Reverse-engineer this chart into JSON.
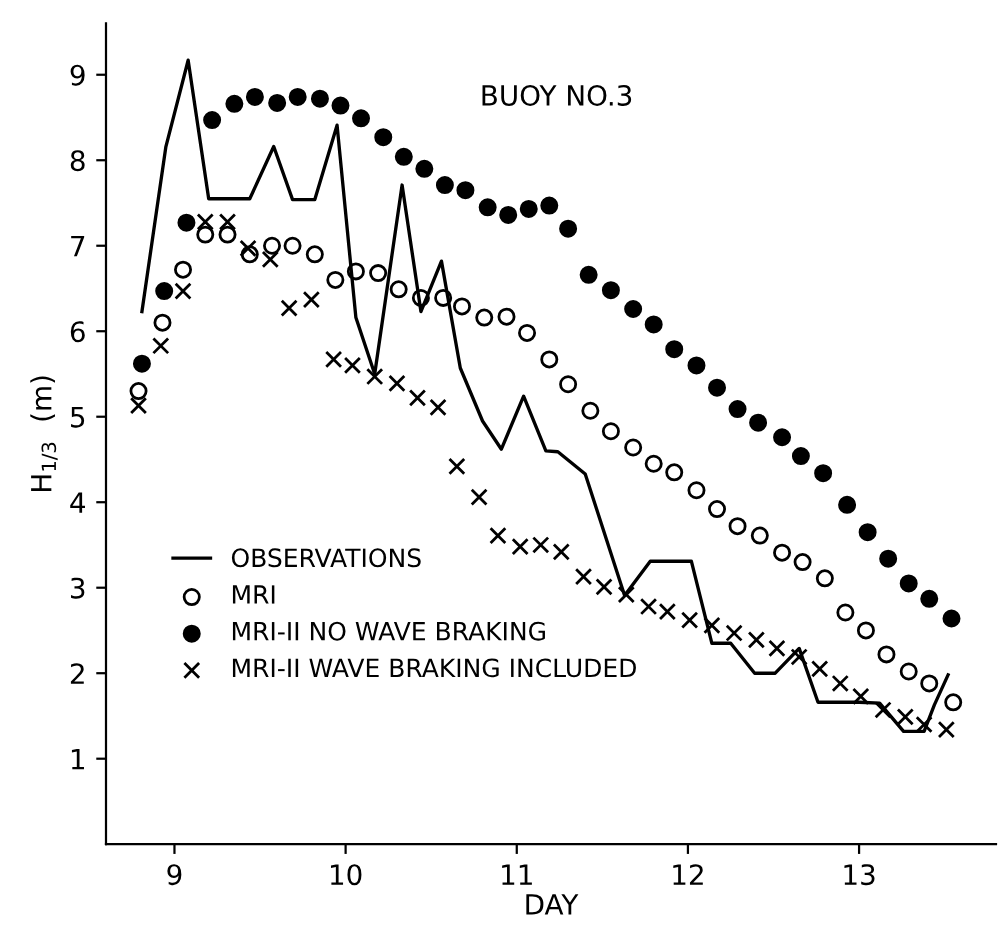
{
  "chart_data": {
    "type": "line",
    "xlabel": "DAY",
    "ylabel": "H$_{1/3}$  (m)",
    "annotations": [
      "BUOY NO.3"
    ],
    "xlim": [
      8.6,
      13.8
    ],
    "ylim": [
      0,
      9.6
    ],
    "xticks": [
      9,
      10,
      11,
      12,
      13
    ],
    "yticks": [
      1,
      2,
      3,
      4,
      5,
      6,
      7,
      8,
      9
    ],
    "grid": false,
    "legend": "bottom left",
    "series": [
      {
        "name": "OBSERVATIONS",
        "color": "#000000",
        "marker": "none",
        "line_style": "solid",
        "x": [
          8.81,
          8.95,
          9.08,
          9.2,
          9.44,
          9.58,
          9.69,
          9.82,
          9.95,
          10.06,
          10.17,
          10.33,
          10.44,
          10.56,
          10.67,
          10.8,
          10.91,
          11.04,
          11.17,
          11.24,
          11.4,
          11.63,
          11.78,
          12.02,
          12.14,
          12.25,
          12.39,
          12.51,
          12.65,
          12.76,
          13.0,
          13.12,
          13.26,
          13.38,
          13.44,
          13.52
        ],
        "values": [
          6.23,
          8.16,
          9.17,
          7.55,
          7.55,
          8.16,
          7.54,
          7.54,
          8.41,
          6.16,
          5.5,
          7.71,
          6.23,
          6.82,
          5.57,
          4.95,
          4.62,
          5.24,
          4.6,
          4.59,
          4.33,
          2.91,
          3.31,
          3.31,
          2.35,
          2.35,
          2.0,
          2.0,
          2.29,
          1.66,
          1.66,
          1.65,
          1.32,
          1.32,
          1.63,
          1.98
        ]
      },
      {
        "name": "MRI",
        "type": "scatter",
        "color": "#ffffff",
        "marker": "circle",
        "x": [
          8.79,
          8.93,
          9.05,
          9.18,
          9.31,
          9.44,
          9.57,
          9.69,
          9.82,
          9.94,
          10.06,
          10.19,
          10.31,
          10.44,
          10.57,
          10.68,
          10.81,
          10.94,
          11.06,
          11.19,
          11.3,
          11.43,
          11.55,
          11.68,
          11.8,
          11.92,
          12.05,
          12.17,
          12.29,
          12.42,
          12.55,
          12.67,
          12.8,
          12.92,
          13.04,
          13.16,
          13.29,
          13.41,
          13.55
        ],
        "values": [
          5.3,
          6.1,
          6.72,
          7.13,
          7.13,
          6.9,
          7.0,
          7.0,
          6.9,
          6.6,
          6.7,
          6.68,
          6.49,
          6.39,
          6.39,
          6.29,
          6.16,
          6.17,
          5.98,
          5.67,
          5.38,
          5.07,
          4.83,
          4.64,
          4.45,
          4.35,
          4.14,
          3.92,
          3.72,
          3.61,
          3.41,
          3.3,
          3.11,
          2.71,
          2.5,
          2.22,
          2.02,
          1.88,
          1.66
        ]
      },
      {
        "name": "MRI-II NO WAVE BRAKING",
        "type": "scatter",
        "color": "#000000",
        "marker": "circle",
        "x": [
          8.81,
          8.94,
          9.07,
          9.22,
          9.35,
          9.47,
          9.6,
          9.72,
          9.85,
          9.97,
          10.09,
          10.22,
          10.34,
          10.46,
          10.58,
          10.7,
          10.83,
          10.95,
          11.07,
          11.19,
          11.3,
          11.42,
          11.55,
          11.68,
          11.8,
          11.92,
          12.05,
          12.17,
          12.29,
          12.41,
          12.55,
          12.66,
          12.79,
          12.93,
          13.05,
          13.17,
          13.29,
          13.41,
          13.54
        ],
        "values": [
          5.62,
          6.47,
          7.27,
          8.47,
          8.66,
          8.74,
          8.67,
          8.74,
          8.72,
          8.64,
          8.49,
          8.27,
          8.04,
          7.9,
          7.71,
          7.65,
          7.45,
          7.36,
          7.43,
          7.47,
          7.2,
          6.66,
          6.48,
          6.26,
          6.08,
          5.79,
          5.6,
          5.34,
          5.09,
          4.93,
          4.76,
          4.54,
          4.34,
          3.97,
          3.65,
          3.34,
          3.05,
          2.87,
          2.64
        ]
      },
      {
        "name": "MRI-II WAVE BRAKING INCLUDED",
        "type": "scatter",
        "color": "#000000",
        "marker": "cross",
        "x": [
          8.79,
          8.92,
          9.05,
          9.18,
          9.31,
          9.43,
          9.56,
          9.67,
          9.8,
          9.93,
          10.04,
          10.17,
          10.3,
          10.42,
          10.54,
          10.65,
          10.78,
          10.89,
          11.02,
          11.14,
          11.26,
          11.39,
          11.51,
          11.64,
          11.77,
          11.88,
          12.01,
          12.14,
          12.27,
          12.4,
          12.52,
          12.65,
          12.77,
          12.89,
          13.01,
          13.14,
          13.27,
          13.38,
          13.51
        ],
        "values": [
          5.13,
          5.83,
          6.47,
          7.28,
          7.28,
          6.97,
          6.84,
          6.27,
          6.37,
          5.67,
          5.6,
          5.47,
          5.39,
          5.22,
          5.11,
          4.42,
          4.06,
          3.61,
          3.48,
          3.5,
          3.42,
          3.13,
          3.01,
          2.92,
          2.78,
          2.72,
          2.62,
          2.56,
          2.47,
          2.39,
          2.29,
          2.19,
          2.05,
          1.88,
          1.73,
          1.57,
          1.49,
          1.4,
          1.34
        ]
      }
    ]
  }
}
